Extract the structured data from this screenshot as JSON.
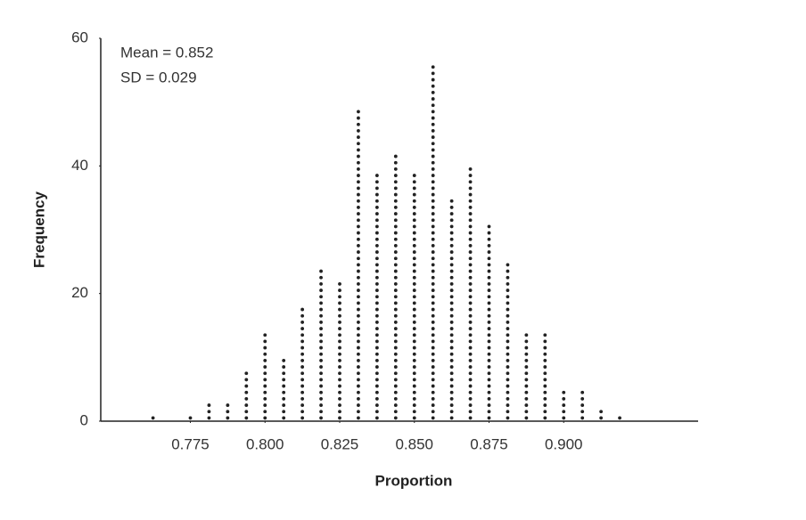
{
  "chart_data": {
    "type": "dot",
    "x_label": "Proportion",
    "y_label": "Frequency",
    "annotations": [
      "Mean = 0.852",
      "SD = 0.029"
    ],
    "x": [
      0.7625,
      0.775,
      0.78125,
      0.7875,
      0.79375,
      0.8,
      0.80625,
      0.8125,
      0.81875,
      0.825,
      0.83125,
      0.8375,
      0.84375,
      0.85,
      0.85625,
      0.8625,
      0.86875,
      0.875,
      0.88125,
      0.8875,
      0.89375,
      0.9,
      0.90625,
      0.9125,
      0.91875
    ],
    "values": [
      1,
      1,
      3,
      3,
      8,
      14,
      10,
      18,
      24,
      22,
      49,
      39,
      42,
      39,
      56,
      35,
      40,
      31,
      25,
      14,
      14,
      5,
      5,
      2,
      1
    ],
    "color": "#222222",
    "xlim": [
      0.745,
      0.945
    ],
    "xticks": [
      0.775,
      {
        "value": 0.8,
        "label": "0.800"
      },
      0.825,
      {
        "value": 0.85,
        "label": "0.850"
      },
      0.875,
      {
        "value": 0.9,
        "label": "0.900"
      }
    ],
    "ylim": [
      0,
      60
    ],
    "yticks": [
      0,
      20,
      40,
      60
    ],
    "grid": false
  }
}
